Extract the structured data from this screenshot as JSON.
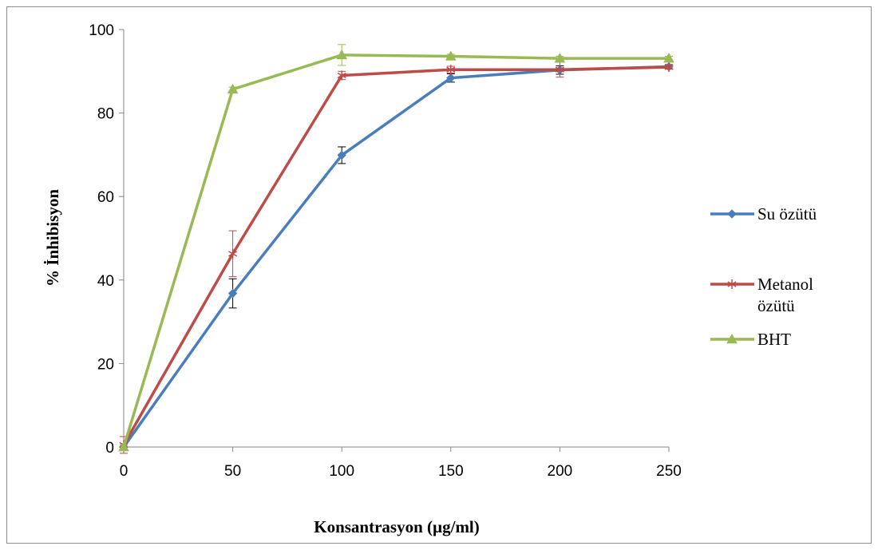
{
  "chart_data": {
    "type": "line",
    "title": "",
    "xlabel": "Konsantrasyon (µg/ml)",
    "ylabel": "% İnhibisyon",
    "x": [
      0,
      50,
      100,
      150,
      200,
      250
    ],
    "xlim": [
      0,
      250
    ],
    "ylim": [
      0,
      100
    ],
    "xticks": [
      "0",
      "50",
      "100",
      "150",
      "200",
      "250"
    ],
    "yticks": [
      "0",
      "20",
      "40",
      "60",
      "80",
      "100"
    ],
    "grid": false,
    "legend_position": "right",
    "series": [
      {
        "name": "Su özütü",
        "name_lines": [
          "Su özütü"
        ],
        "color": "#4a7ebb",
        "marker": "diamond",
        "values": [
          0,
          36.8,
          69.9,
          88.4,
          90.3,
          91.1
        ],
        "errors": [
          0.5,
          3.5,
          2.0,
          1.0,
          1.0,
          0.5
        ],
        "error_color": "#000000"
      },
      {
        "name": "Metanol özütü",
        "name_lines": [
          "Metanol",
          "özütü"
        ],
        "color": "#be4b48",
        "marker": "asterisk",
        "values": [
          0.5,
          46.3,
          89.0,
          90.4,
          90.4,
          91.0
        ],
        "errors": [
          2.0,
          5.5,
          1.0,
          0.8,
          1.8,
          0.5
        ],
        "error_color": "#be4b48"
      },
      {
        "name": "BHT",
        "name_lines": [
          "BHT"
        ],
        "color": "#98b954",
        "marker": "triangle",
        "values": [
          0,
          85.7,
          93.9,
          93.6,
          93.1,
          93.1
        ],
        "errors": [
          0.5,
          0.5,
          2.5,
          0.5,
          0.5,
          0.5
        ],
        "error_color": "#98b954"
      }
    ]
  }
}
